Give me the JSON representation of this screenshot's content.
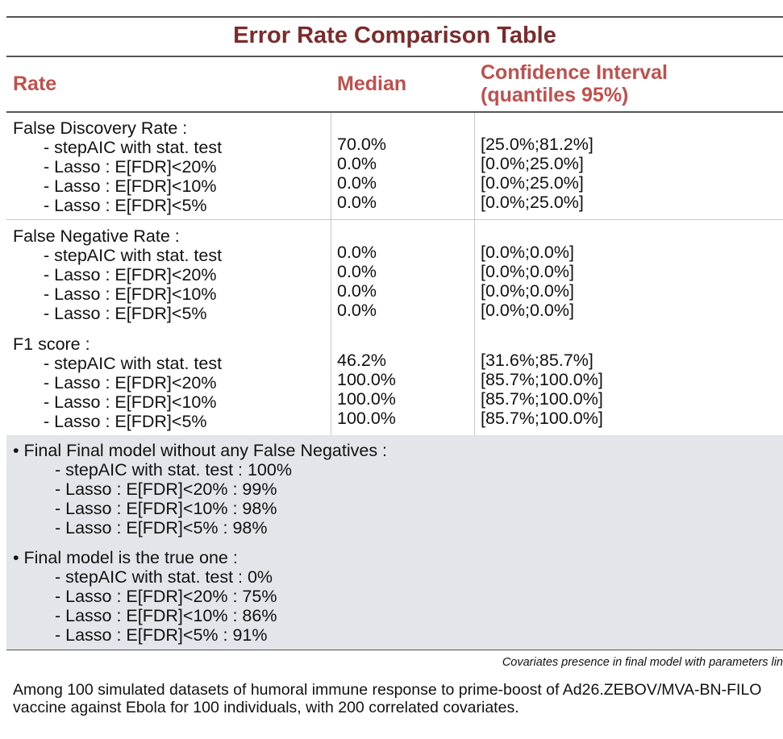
{
  "title": "Error Rate Comparison Table",
  "headers": {
    "rate": "Rate",
    "median": "Median",
    "ci_line1": "Confidence Interval",
    "ci_line2": "(quantiles 95%)"
  },
  "groups": [
    {
      "label": "False Discovery Rate :",
      "rows": [
        {
          "method": "- stepAIC with stat. test",
          "median": "70.0%",
          "ci": "[25.0%;81.2%]"
        },
        {
          "method": "- Lasso : E[FDR]<20%",
          "median": "0.0%",
          "ci": "[0.0%;25.0%]"
        },
        {
          "method": "- Lasso : E[FDR]<10%",
          "median": "0.0%",
          "ci": "[0.0%;25.0%]"
        },
        {
          "method": "- Lasso : E[FDR]<5%",
          "median": "0.0%",
          "ci": "[0.0%;25.0%]"
        }
      ]
    },
    {
      "label": "False Negative Rate :",
      "rows": [
        {
          "method": "- stepAIC with stat. test",
          "median": "0.0%",
          "ci": "[0.0%;0.0%]"
        },
        {
          "method": "- Lasso : E[FDR]<20%",
          "median": "0.0%",
          "ci": "[0.0%;0.0%]"
        },
        {
          "method": "- Lasso : E[FDR]<10%",
          "median": "0.0%",
          "ci": "[0.0%;0.0%]"
        },
        {
          "method": "- Lasso : E[FDR]<5%",
          "median": "0.0%",
          "ci": "[0.0%;0.0%]"
        }
      ]
    },
    {
      "label": "F1 score :",
      "rows": [
        {
          "method": "- stepAIC with stat. test",
          "median": "46.2%",
          "ci": "[31.6%;85.7%]"
        },
        {
          "method": "- Lasso : E[FDR]<20%",
          "median": "100.0%",
          "ci": "[85.7%;100.0%]"
        },
        {
          "method": "- Lasso : E[FDR]<10%",
          "median": "100.0%",
          "ci": "[85.7%;100.0%]"
        },
        {
          "method": "- Lasso : E[FDR]<5%",
          "median": "100.0%",
          "ci": "[85.7%;100.0%]"
        }
      ]
    }
  ],
  "summary": [
    {
      "heading": "• Final Final model without any False Negatives :",
      "items": [
        "- stepAIC with stat. test : 100%",
        "- Lasso : E[FDR]<20% : 99%",
        "- Lasso : E[FDR]<10% : 98%",
        "- Lasso : E[FDR]<5% : 98%"
      ]
    },
    {
      "heading": "• Final model is the true one :",
      "items": [
        "- stepAIC with stat. test : 0%",
        "- Lasso : E[FDR]<20% : 75%",
        "- Lasso : E[FDR]<10% : 86%",
        "- Lasso : E[FDR]<5% : 91%"
      ]
    }
  ],
  "caption": "Covariates presence in final model with parameters lin",
  "footnote": "Among 100 simulated datasets of humoral immune response to prime-boost of Ad26.ZEBOV/MVA-BN-FILO vaccine against Ebola for 100 individuals, with 200 correlated covariates."
}
